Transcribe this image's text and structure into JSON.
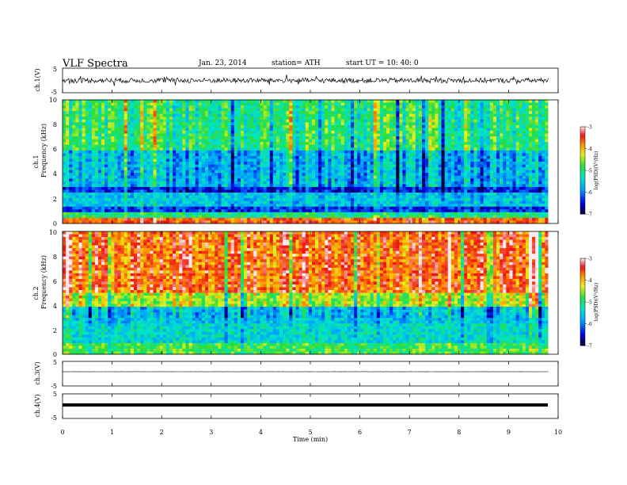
{
  "header": {
    "title": "VLF  Spectra",
    "date": "Jan. 23, 2014",
    "station": "station= ATH",
    "start": "start  UT =   10: 40: 0"
  },
  "colorbar": {
    "label": "log(PSD)(V²/Hz)",
    "ticks": [
      "-3",
      "-4",
      "-5",
      "-6",
      "-7"
    ]
  },
  "chart_data": [
    {
      "type": "line",
      "name": "ch1",
      "ylabel": "ch.1(V)",
      "ylim": [
        -5,
        5
      ],
      "yticks": [
        "5",
        "-5"
      ],
      "description_level": "noisy waveform around zero with spikes",
      "approx_amplitude": 1.0
    },
    {
      "type": "heatmap",
      "name": "ch1-spectrogram",
      "ylabel": "ch.1",
      "ylabel2": "Frequency  (kHz)",
      "ylim": [
        0,
        10
      ],
      "yticks": [
        "10",
        "8",
        "6",
        "4",
        "2",
        "0"
      ],
      "scale": "log(PSD)",
      "clim": [
        -7,
        -3
      ],
      "bands_khz_level": [
        {
          "f": [
            0,
            0.5
          ],
          "level": -3.6
        },
        {
          "f": [
            0.5,
            1.0
          ],
          "level": -5.0
        },
        {
          "f": [
            1.0,
            1.4
          ],
          "level": -6.3
        },
        {
          "f": [
            1.4,
            2.4
          ],
          "level": -5.6
        },
        {
          "f": [
            2.4,
            3.0
          ],
          "level": -6.4
        },
        {
          "f": [
            3.0,
            6.0
          ],
          "level": -5.7
        },
        {
          "f": [
            6.0,
            10.0
          ],
          "level": -5.0
        }
      ]
    },
    {
      "type": "heatmap",
      "name": "ch2-spectrogram",
      "ylabel": "ch.2",
      "ylabel2": "Frequency  (kHz)",
      "ylim": [
        0,
        10
      ],
      "yticks": [
        "10",
        "8",
        "6",
        "4",
        "2",
        "0"
      ],
      "scale": "log(PSD)",
      "clim": [
        -7,
        -3
      ],
      "bands_khz_level": [
        {
          "f": [
            0,
            1.0
          ],
          "level": -4.8
        },
        {
          "f": [
            1.0,
            2.6
          ],
          "level": -5.4
        },
        {
          "f": [
            2.6,
            3.8
          ],
          "level": -5.6
        },
        {
          "f": [
            3.8,
            5.0
          ],
          "level": -4.4
        },
        {
          "f": [
            5.0,
            10.0
          ],
          "level": -3.6
        }
      ]
    },
    {
      "type": "line",
      "name": "ch3",
      "ylabel": "ch.3(V)",
      "ylim": [
        -5,
        5
      ],
      "yticks": [
        "5",
        "-5"
      ],
      "approx_amplitude": 0.05
    },
    {
      "type": "line",
      "name": "ch4",
      "ylabel": "ch.4(V)",
      "ylim": [
        -5,
        5
      ],
      "yticks": [
        "5",
        "-5"
      ],
      "approx_amplitude": 0.2
    }
  ],
  "xaxis": {
    "label": "Time  (min)",
    "xlim": [
      0,
      10
    ],
    "ticks": [
      "0",
      "1",
      "2",
      "3",
      "4",
      "5",
      "6",
      "7",
      "8",
      "9",
      "10"
    ],
    "data_end_min": 9.8
  }
}
